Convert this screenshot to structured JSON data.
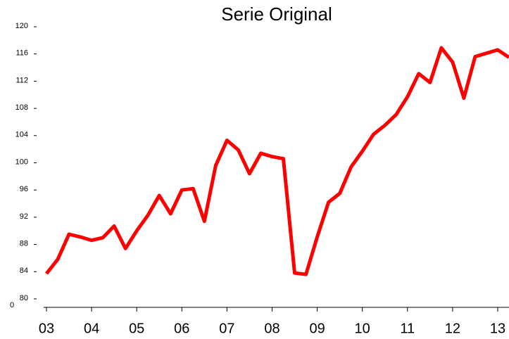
{
  "chart_data": {
    "type": "line",
    "title": "Serie Original",
    "categories": [
      "03",
      null,
      null,
      null,
      "04",
      null,
      null,
      null,
      "05",
      null,
      null,
      null,
      "06",
      null,
      null,
      null,
      "07",
      null,
      null,
      null,
      "08",
      null,
      null,
      null,
      "09",
      null,
      null,
      null,
      "10",
      null,
      null,
      null,
      "11",
      null,
      null,
      null,
      "12",
      null,
      null,
      null,
      "13",
      null
    ],
    "series": [
      {
        "name": "Serie Original",
        "color": "#ff0000",
        "values": [
          83.6,
          85.7,
          89.4,
          89.0,
          88.5,
          88.9,
          90.6,
          87.3,
          89.9,
          92.2,
          95.1,
          92.4,
          95.9,
          96.1,
          91.3,
          99.5,
          103.2,
          101.8,
          98.3,
          101.3,
          100.8,
          100.5,
          83.7,
          83.5,
          89.0,
          94.1,
          95.4,
          99.3,
          101.6,
          104.1,
          105.4,
          107.0,
          109.6,
          113.0,
          111.7,
          116.8,
          114.7,
          109.4,
          115.5,
          116.0,
          116.5,
          115.4
        ]
      }
    ],
    "ylim": [
      78.6,
      120
    ],
    "yticks": [
      80,
      84,
      88,
      92,
      96,
      100,
      104,
      108,
      112,
      116,
      120
    ],
    "annotations": [
      {
        "text": "0"
      }
    ],
    "grid": false
  }
}
